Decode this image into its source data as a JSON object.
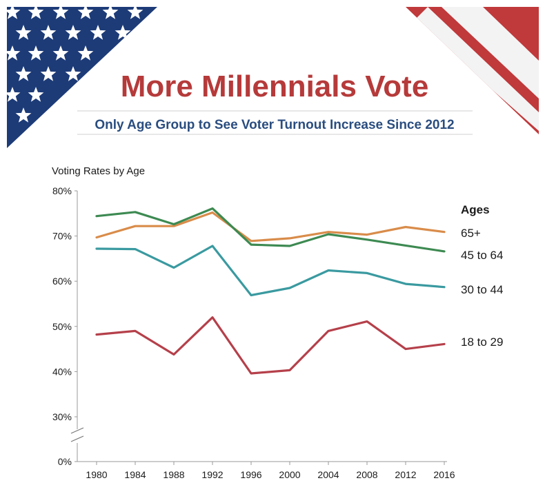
{
  "header": {
    "title": "More Millennials Vote",
    "subtitle": "Only Age Group to See Voter Turnout Increase Since 2012"
  },
  "colors": {
    "title": "#b63a3a",
    "subtitle": "#2a4d7f",
    "flag_blue": "#1d3b77",
    "flag_red": "#c0393b",
    "rule": "#cfcfcf",
    "axis": "#999999"
  },
  "chart_data": {
    "type": "line",
    "ylabel": "Voting Rates by Age",
    "xlabel": "",
    "legend_title": "Ages",
    "x": [
      "1980",
      "1984",
      "1988",
      "1992",
      "1996",
      "2000",
      "2004",
      "2008",
      "2012",
      "2016"
    ],
    "y_ticks": [
      "80%",
      "70%",
      "60%",
      "50%",
      "40%",
      "30%",
      "0%"
    ],
    "ylim": [
      30,
      80
    ],
    "axis_break": true,
    "series": [
      {
        "name": "65+",
        "color": "#d98c4a",
        "values": [
          69.7,
          72.2,
          72.2,
          75.2,
          68.9,
          69.5,
          70.9,
          70.3,
          72.0,
          70.9
        ]
      },
      {
        "name": "45 to 64",
        "color": "#3d8a52",
        "values": [
          74.4,
          75.3,
          72.6,
          76.1,
          68.1,
          67.8,
          70.4,
          69.2,
          67.9,
          66.6
        ]
      },
      {
        "name": "30 to 44",
        "color": "#3a9aa0",
        "values": [
          67.2,
          67.1,
          63.0,
          67.8,
          56.9,
          58.5,
          62.4,
          61.8,
          59.4,
          58.7
        ]
      },
      {
        "name": "18 to 29",
        "color": "#b5404a",
        "values": [
          48.2,
          49.0,
          43.8,
          52.0,
          39.6,
          40.3,
          49.0,
          51.1,
          45.0,
          46.1
        ]
      }
    ]
  }
}
